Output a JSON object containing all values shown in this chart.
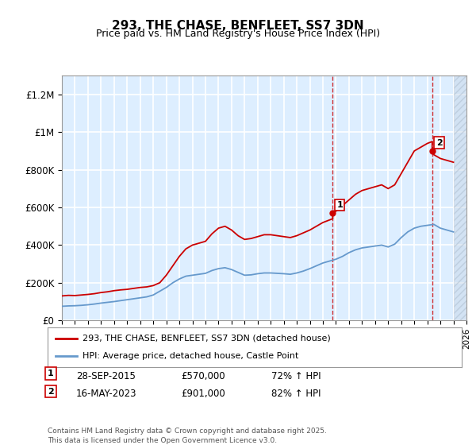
{
  "title": "293, THE CHASE, BENFLEET, SS7 3DN",
  "subtitle": "Price paid vs. HM Land Registry's House Price Index (HPI)",
  "ylabel_ticks": [
    "£0",
    "£200K",
    "£400K",
    "£600K",
    "£800K",
    "£1M",
    "£1.2M"
  ],
  "ylim": [
    0,
    1300000
  ],
  "yticks": [
    0,
    200000,
    400000,
    600000,
    800000,
    1000000,
    1200000
  ],
  "xlim_start": 1995,
  "xlim_end": 2026,
  "sale1_date": 2015.75,
  "sale1_price": 570000,
  "sale1_label": "1",
  "sale2_date": 2023.37,
  "sale2_price": 901000,
  "sale2_label": "2",
  "line_color_red": "#cc0000",
  "line_color_blue": "#6699cc",
  "bg_color": "#ddeeff",
  "hatch_color": "#bbccdd",
  "grid_color": "#ffffff",
  "future_shade_start": 2025.0,
  "sale1_vline_start": 2015.75,
  "sale2_vline_start": 2023.37,
  "legend_line1": "293, THE CHASE, BENFLEET, SS7 3DN (detached house)",
  "legend_line2": "HPI: Average price, detached house, Castle Point",
  "annotation1": "28-SEP-2015     £570,000     72% ↑ HPI",
  "annotation2": "16-MAY-2023     £901,000     82% ↑ HPI",
  "footer": "Contains HM Land Registry data © Crown copyright and database right 2025.\nThis data is licensed under the Open Government Licence v3.0.",
  "red_series_x": [
    1995.0,
    1995.5,
    1996.0,
    1996.5,
    1997.0,
    1997.5,
    1998.0,
    1998.5,
    1999.0,
    1999.5,
    2000.0,
    2000.5,
    2001.0,
    2001.5,
    2002.0,
    2002.5,
    2003.0,
    2003.5,
    2004.0,
    2004.5,
    2005.0,
    2005.5,
    2006.0,
    2006.5,
    2007.0,
    2007.5,
    2008.0,
    2008.5,
    2009.0,
    2009.5,
    2010.0,
    2010.5,
    2011.0,
    2011.5,
    2012.0,
    2012.5,
    2013.0,
    2013.5,
    2014.0,
    2014.5,
    2015.0,
    2015.75,
    2015.75,
    2016.0,
    2016.5,
    2017.0,
    2017.5,
    2018.0,
    2018.5,
    2019.0,
    2019.5,
    2020.0,
    2020.5,
    2021.0,
    2021.5,
    2022.0,
    2022.5,
    2023.0,
    2023.37,
    2023.37,
    2023.5,
    2024.0,
    2024.5,
    2025.0
  ],
  "red_series_y": [
    130000,
    133000,
    132000,
    135000,
    138000,
    142000,
    148000,
    152000,
    158000,
    162000,
    165000,
    170000,
    175000,
    178000,
    185000,
    200000,
    240000,
    290000,
    340000,
    380000,
    400000,
    410000,
    420000,
    460000,
    490000,
    500000,
    480000,
    450000,
    430000,
    435000,
    445000,
    455000,
    455000,
    450000,
    445000,
    440000,
    450000,
    465000,
    480000,
    500000,
    520000,
    540000,
    570000,
    580000,
    610000,
    640000,
    670000,
    690000,
    700000,
    710000,
    720000,
    700000,
    720000,
    780000,
    840000,
    900000,
    920000,
    940000,
    950000,
    901000,
    880000,
    860000,
    850000,
    840000
  ],
  "blue_series_x": [
    1995.0,
    1995.5,
    1996.0,
    1996.5,
    1997.0,
    1997.5,
    1998.0,
    1998.5,
    1999.0,
    1999.5,
    2000.0,
    2000.5,
    2001.0,
    2001.5,
    2002.0,
    2002.5,
    2003.0,
    2003.5,
    2004.0,
    2004.5,
    2005.0,
    2005.5,
    2006.0,
    2006.5,
    2007.0,
    2007.5,
    2008.0,
    2008.5,
    2009.0,
    2009.5,
    2010.0,
    2010.5,
    2011.0,
    2011.5,
    2012.0,
    2012.5,
    2013.0,
    2013.5,
    2014.0,
    2014.5,
    2015.0,
    2015.5,
    2016.0,
    2016.5,
    2017.0,
    2017.5,
    2018.0,
    2018.5,
    2019.0,
    2019.5,
    2020.0,
    2020.5,
    2021.0,
    2021.5,
    2022.0,
    2022.5,
    2023.0,
    2023.5,
    2024.0,
    2024.5,
    2025.0
  ],
  "blue_series_y": [
    75000,
    77000,
    78000,
    80000,
    83000,
    87000,
    92000,
    96000,
    100000,
    105000,
    110000,
    115000,
    120000,
    125000,
    135000,
    155000,
    175000,
    200000,
    220000,
    235000,
    240000,
    245000,
    250000,
    265000,
    275000,
    280000,
    270000,
    255000,
    240000,
    242000,
    248000,
    252000,
    252000,
    250000,
    248000,
    245000,
    252000,
    262000,
    275000,
    290000,
    305000,
    315000,
    325000,
    340000,
    360000,
    375000,
    385000,
    390000,
    395000,
    400000,
    390000,
    405000,
    440000,
    470000,
    490000,
    500000,
    505000,
    510000,
    490000,
    480000,
    470000
  ]
}
